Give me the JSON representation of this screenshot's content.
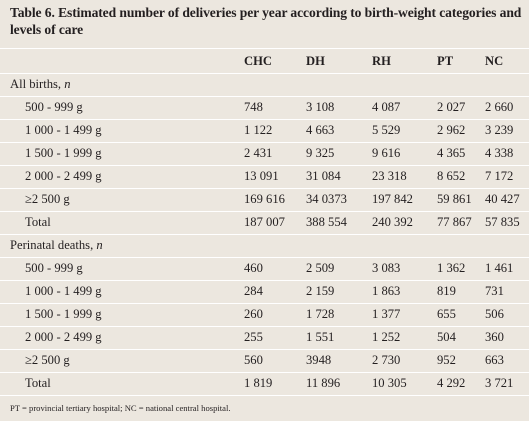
{
  "caption": "Table 6. Estimated number of deliveries per year according to birth-weight categories and levels of care",
  "columns": [
    "CHC",
    "DH",
    "RH",
    "PT",
    "NC"
  ],
  "sections": [
    {
      "title": "All births, ",
      "title_italic": "n",
      "rows": [
        {
          "label": "500 - 999 g",
          "values": [
            "748",
            "3 108",
            "4 087",
            "2 027",
            "2 660"
          ]
        },
        {
          "label": "1 000 - 1 499 g",
          "values": [
            "1 122",
            "4 663",
            "5 529",
            "2 962",
            "3 239"
          ]
        },
        {
          "label": "1 500 - 1 999 g",
          "values": [
            "2 431",
            "9 325",
            "9 616",
            "4 365",
            "4 338"
          ]
        },
        {
          "label": "2 000 - 2 499 g",
          "values": [
            "13 091",
            "31 084",
            "23 318",
            "8 652",
            "7 172"
          ]
        },
        {
          "label": "≥2 500 g",
          "values": [
            "169 616",
            "34 0373",
            "197 842",
            "59 861",
            "40 427"
          ]
        },
        {
          "label": "Total",
          "values": [
            "187 007",
            "388 554",
            "240 392",
            "77 867",
            "57 835"
          ]
        }
      ]
    },
    {
      "title": "Perinatal deaths, ",
      "title_italic": "n",
      "rows": [
        {
          "label": "500 - 999 g",
          "values": [
            "460",
            "2 509",
            "3 083",
            "1 362",
            "1 461"
          ]
        },
        {
          "label": "1 000 - 1 499 g",
          "values": [
            "284",
            "2 159",
            "1 863",
            "819",
            "731"
          ]
        },
        {
          "label": "1 500 - 1 999 g",
          "values": [
            "260",
            "1 728",
            "1 377",
            "655",
            "506"
          ]
        },
        {
          "label": "2 000 - 2 499 g",
          "values": [
            "255",
            "1 551",
            "1 252",
            "504",
            "360"
          ]
        },
        {
          "label": "≥2 500 g",
          "values": [
            "560",
            "3948",
            "2 730",
            "952",
            "663"
          ]
        },
        {
          "label": "Total",
          "values": [
            "1 819",
            "11 896",
            "10 305",
            "4 292",
            "3 721"
          ]
        }
      ]
    }
  ],
  "footnote": "PT = provincial tertiary hospital; NC = national central hospital."
}
